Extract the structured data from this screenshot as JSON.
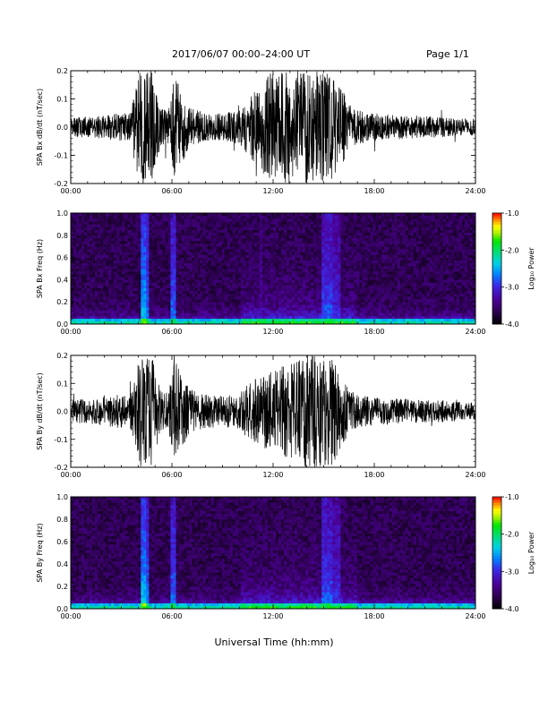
{
  "header": {
    "title": "2017/06/07  00:00–24:00 UT",
    "page": "Page 1/1"
  },
  "chart_data": [
    {
      "type": "line",
      "ylabel": "SPA Bx dB/dt (nT/sec)",
      "xlim": [
        "00:00",
        "24:00"
      ],
      "ylim": [
        -0.2,
        0.2
      ],
      "x_ticks": [
        "00:00",
        "06:00",
        "12:00",
        "18:00",
        "24:00"
      ],
      "y_ticks": [
        "-0.2",
        "-0.1",
        "0.0",
        "0.1",
        "0.2"
      ],
      "envelope": {
        "hours": [
          0,
          1,
          2,
          2.7,
          3,
          3.5,
          4.1,
          4.5,
          4.8,
          5.3,
          5.8,
          6.2,
          7,
          8,
          9,
          10,
          10.5,
          11,
          12,
          13,
          14,
          15,
          15.5,
          16,
          16.5,
          17,
          18,
          19,
          20,
          21,
          22,
          23,
          24
        ],
        "amplitude": [
          0.035,
          0.04,
          0.04,
          0.05,
          0.05,
          0.05,
          0.2,
          0.2,
          0.2,
          0.07,
          0.06,
          0.2,
          0.07,
          0.05,
          0.05,
          0.06,
          0.1,
          0.14,
          0.2,
          0.2,
          0.2,
          0.2,
          0.2,
          0.15,
          0.08,
          0.06,
          0.05,
          0.045,
          0.045,
          0.04,
          0.035,
          0.03,
          0.03
        ]
      }
    },
    {
      "type": "heatmap",
      "ylabel": "SPA Bx Freq (Hz)",
      "colorbar_label": "Log₁₀ Power",
      "xlim": [
        "00:00",
        "24:00"
      ],
      "ylim": [
        0.0,
        1.0
      ],
      "x_ticks": [
        "00:00",
        "06:00",
        "12:00",
        "18:00",
        "24:00"
      ],
      "y_ticks": [
        "0.0",
        "0.2",
        "0.4",
        "0.6",
        "0.8",
        "1.0"
      ],
      "colorbar_ticks": [
        "-1.0",
        "-2.0",
        "-3.0",
        "-4.0"
      ],
      "color_range": [
        -4.0,
        -1.0
      ],
      "bands": [
        {
          "hour": 4.3,
          "width": 0.15,
          "level": -2.3
        },
        {
          "hour": 4.6,
          "width": 0.1,
          "level": -2.6
        },
        {
          "hour": 6.1,
          "width": 0.2,
          "level": -2.6
        },
        {
          "hour": 11.3,
          "width": 0.1,
          "level": -3.2
        },
        {
          "hour": 15.2,
          "width": 0.3,
          "level": -2.7
        },
        {
          "hour": 15.8,
          "width": 0.2,
          "level": -2.9
        }
      ]
    },
    {
      "type": "line",
      "ylabel": "SPA By dB/dt (nT/sec)",
      "xlim": [
        "00:00",
        "24:00"
      ],
      "ylim": [
        -0.2,
        0.2
      ],
      "x_ticks": [
        "00:00",
        "06:00",
        "12:00",
        "18:00",
        "24:00"
      ],
      "y_ticks": [
        "-0.2",
        "-0.1",
        "0.0",
        "0.1",
        "0.2"
      ],
      "envelope": {
        "hours": [
          0,
          1,
          2,
          2.7,
          3,
          3.5,
          4.1,
          4.5,
          4.8,
          5.3,
          5.8,
          6.2,
          7,
          8,
          9,
          10,
          10.5,
          11,
          12,
          13,
          14,
          15,
          15.5,
          16,
          16.5,
          17,
          18,
          19,
          20,
          21,
          22,
          23,
          24
        ],
        "amplitude": [
          0.04,
          0.045,
          0.05,
          0.06,
          0.06,
          0.055,
          0.2,
          0.2,
          0.2,
          0.08,
          0.07,
          0.2,
          0.08,
          0.06,
          0.055,
          0.065,
          0.1,
          0.12,
          0.15,
          0.17,
          0.2,
          0.2,
          0.2,
          0.13,
          0.08,
          0.06,
          0.05,
          0.045,
          0.045,
          0.04,
          0.04,
          0.035,
          0.03
        ]
      }
    },
    {
      "type": "heatmap",
      "ylabel": "SPA By Freq (Hz)",
      "colorbar_label": "Log₁₀ Power",
      "xlim": [
        "00:00",
        "24:00"
      ],
      "ylim": [
        0.0,
        1.0
      ],
      "x_ticks": [
        "00:00",
        "06:00",
        "12:00",
        "18:00",
        "24:00"
      ],
      "y_ticks": [
        "0.0",
        "0.2",
        "0.4",
        "0.6",
        "0.8",
        "1.0"
      ],
      "colorbar_ticks": [
        "-1.0",
        "-2.0",
        "-3.0",
        "-4.0"
      ],
      "color_range": [
        -4.0,
        -1.0
      ],
      "bands": [
        {
          "hour": 4.3,
          "width": 0.15,
          "level": -2.3
        },
        {
          "hour": 4.6,
          "width": 0.1,
          "level": -2.6
        },
        {
          "hour": 6.1,
          "width": 0.2,
          "level": -2.6
        },
        {
          "hour": 15.2,
          "width": 0.3,
          "level": -2.7
        },
        {
          "hour": 15.8,
          "width": 0.2,
          "level": -2.9
        }
      ]
    }
  ],
  "xaxis_label": "Universal Time (hh:mm)"
}
